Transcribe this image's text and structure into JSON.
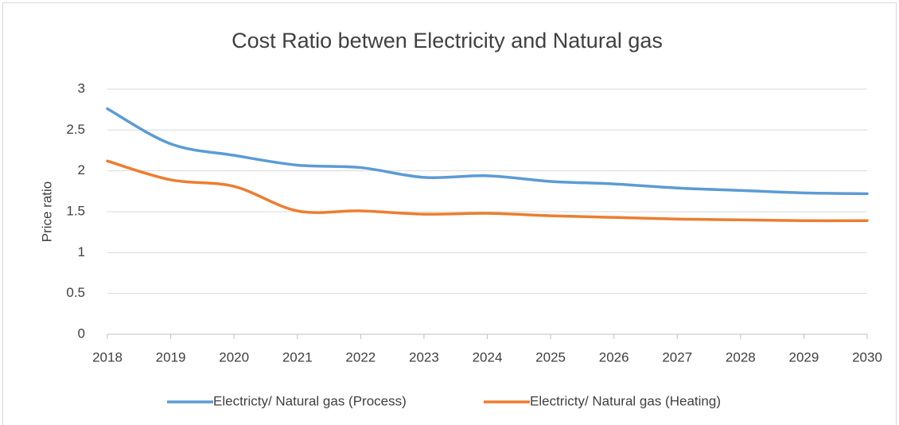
{
  "chart_data": {
    "type": "line",
    "title": "Cost Ratio betwen Electricity and Natural gas",
    "y_label": "Price ratio",
    "x": [
      2018,
      2019,
      2020,
      2021,
      2022,
      2023,
      2024,
      2025,
      2026,
      2027,
      2028,
      2029,
      2030
    ],
    "xlim": [
      2018,
      2030
    ],
    "xticks": [
      2018,
      2019,
      2020,
      2021,
      2022,
      2023,
      2024,
      2025,
      2026,
      2027,
      2028,
      2029,
      2030
    ],
    "ylim": [
      0,
      3
    ],
    "yticks": [
      0,
      0.5,
      1,
      1.5,
      2,
      2.5,
      3
    ],
    "grid": true,
    "legend": "bottom",
    "series": [
      {
        "name": "Electricty/ Natural gas (Process)",
        "color": "#5b9bd5",
        "values": [
          2.76,
          2.33,
          2.19,
          2.07,
          2.04,
          1.92,
          1.94,
          1.87,
          1.84,
          1.79,
          1.76,
          1.73,
          1.72
        ]
      },
      {
        "name": "Electricty/ Natural gas (Heating)",
        "color": "#ed7d31",
        "values": [
          2.12,
          1.89,
          1.81,
          1.51,
          1.51,
          1.47,
          1.48,
          1.45,
          1.43,
          1.41,
          1.4,
          1.39,
          1.39
        ]
      }
    ]
  }
}
